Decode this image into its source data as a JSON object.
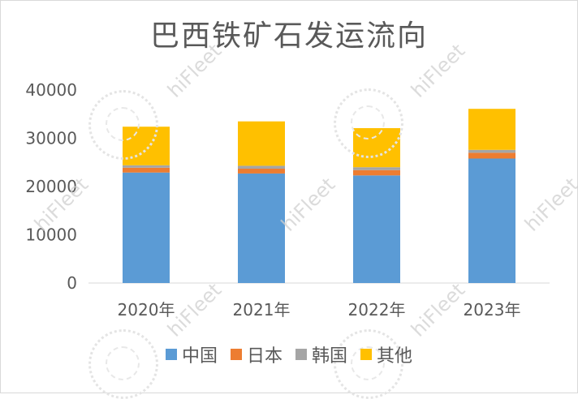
{
  "chart_data": {
    "type": "bar",
    "stacked": true,
    "title": "巴西铁矿石发运流向",
    "categories": [
      "2020年",
      "2021年",
      "2022年",
      "2023年"
    ],
    "series": [
      {
        "name": "中国",
        "color": "#5b9bd5",
        "values": [
          22900,
          22700,
          22300,
          25800
        ]
      },
      {
        "name": "日本",
        "color": "#ed7d31",
        "values": [
          1000,
          1000,
          1100,
          1200
        ]
      },
      {
        "name": "韩国",
        "color": "#a5a5a5",
        "values": [
          500,
          600,
          600,
          600
        ]
      },
      {
        "name": "其他",
        "color": "#ffc000",
        "values": [
          8000,
          9200,
          8100,
          8500
        ]
      }
    ],
    "yticks": [
      "0",
      "10000",
      "20000",
      "30000",
      "40000"
    ],
    "ylim": [
      0,
      40000
    ],
    "grid": false,
    "legend": "bottom"
  },
  "watermark": "hiFleet"
}
